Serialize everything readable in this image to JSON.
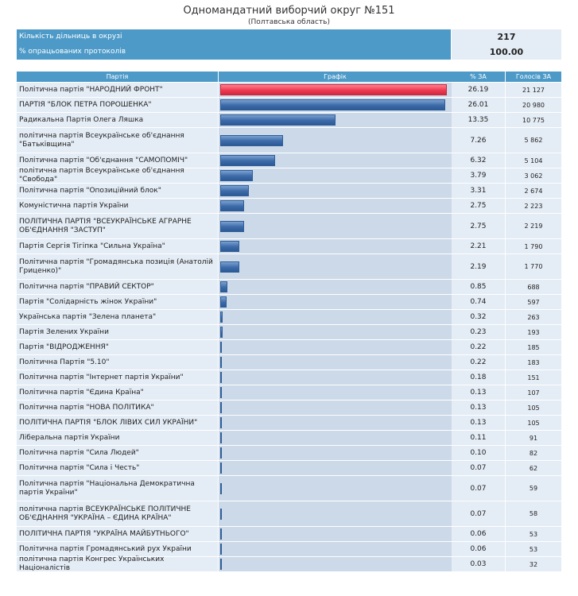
{
  "header": {
    "title": "Одномандатний виборчий округ №151",
    "subtitle": "(Полтавська область)"
  },
  "summary": {
    "stations_label": "Кількість дільниць в окрузі",
    "stations_value": "217",
    "processed_label": "% опрацьованих протоколів",
    "processed_value": "100.00"
  },
  "colors": {
    "bar": "#3c6aa8",
    "lead_bar": "#ee3a52",
    "header": "#4d9ac8"
  },
  "chart_data": {
    "type": "bar",
    "orientation": "horizontal",
    "headers": {
      "party": "Партія",
      "chart": "Графік",
      "pct": "% ЗА",
      "votes": "Голосів ЗА"
    },
    "rows": [
      {
        "party": "Політична партія \"НАРОДНИЙ ФРОНТ\"",
        "pct": "26.19",
        "votes": "21 127",
        "value": 26.19
      },
      {
        "party": "ПАРТІЯ \"БЛОК ПЕТРА ПОРОШЕНКА\"",
        "pct": "26.01",
        "votes": "20 980",
        "value": 26.01
      },
      {
        "party": "Радикальна Партія Олега Ляшка",
        "pct": "13.35",
        "votes": "10 775",
        "value": 13.35
      },
      {
        "party": "політична партія Всеукраїнське об'єднання \"Батьківщина\"",
        "pct": "7.26",
        "votes": "5 862",
        "value": 7.26
      },
      {
        "party": "Політична партія \"Об'єднання \"САМОПОМІЧ\"",
        "pct": "6.32",
        "votes": "5 104",
        "value": 6.32
      },
      {
        "party": "політична партія Всеукраїнське об'єднання \"Свобода\"",
        "pct": "3.79",
        "votes": "3 062",
        "value": 3.79
      },
      {
        "party": "Політична партія \"Опозиційний блок\"",
        "pct": "3.31",
        "votes": "2 674",
        "value": 3.31
      },
      {
        "party": "Комуністична партія України",
        "pct": "2.75",
        "votes": "2 223",
        "value": 2.75
      },
      {
        "party": "ПОЛІТИЧНА ПАРТІЯ \"ВСЕУКРАЇНСЬКЕ АГРАРНЕ ОБ'ЄДНАННЯ \"ЗАСТУП\"",
        "pct": "2.75",
        "votes": "2 219",
        "value": 2.75
      },
      {
        "party": "Партія Сергія Тігіпка \"Сильна Україна\"",
        "pct": "2.21",
        "votes": "1 790",
        "value": 2.21
      },
      {
        "party": "Політична партія \"Громадянська позиція (Анатолій Гриценко)\"",
        "pct": "2.19",
        "votes": "1 770",
        "value": 2.19
      },
      {
        "party": "Політична партія \"ПРАВИЙ СЕКТОР\"",
        "pct": "0.85",
        "votes": "688",
        "value": 0.85
      },
      {
        "party": "Партія \"Солідарність жінок України\"",
        "pct": "0.74",
        "votes": "597",
        "value": 0.74
      },
      {
        "party": "Українська партія \"Зелена планета\"",
        "pct": "0.32",
        "votes": "263",
        "value": 0.32
      },
      {
        "party": "Партія Зелених України",
        "pct": "0.23",
        "votes": "193",
        "value": 0.23
      },
      {
        "party": "Партія \"ВІДРОДЖЕННЯ\"",
        "pct": "0.22",
        "votes": "185",
        "value": 0.22
      },
      {
        "party": "Політична Партія \"5.10\"",
        "pct": "0.22",
        "votes": "183",
        "value": 0.22
      },
      {
        "party": "Політична партія \"Інтернет партія України\"",
        "pct": "0.18",
        "votes": "151",
        "value": 0.18
      },
      {
        "party": "Політична партія \"Єдина Країна\"",
        "pct": "0.13",
        "votes": "107",
        "value": 0.13
      },
      {
        "party": "Політична партія \"НОВА ПОЛІТИКА\"",
        "pct": "0.13",
        "votes": "105",
        "value": 0.13
      },
      {
        "party": "ПОЛІТИЧНА ПАРТІЯ \"БЛОК ЛІВИХ СИЛ УКРАЇНИ\"",
        "pct": "0.13",
        "votes": "105",
        "value": 0.13
      },
      {
        "party": "Ліберальна партія України",
        "pct": "0.11",
        "votes": "91",
        "value": 0.11
      },
      {
        "party": "Політична партія \"Сила Людей\"",
        "pct": "0.10",
        "votes": "82",
        "value": 0.1
      },
      {
        "party": "Політична партія \"Сила і Честь\"",
        "pct": "0.07",
        "votes": "62",
        "value": 0.07
      },
      {
        "party": "Політична партія \"Національна Демократична партія України\"",
        "pct": "0.07",
        "votes": "59",
        "value": 0.07
      },
      {
        "party": "політична партія ВСЕУКРАЇНСЬКЕ ПОЛІТИЧНЕ ОБ'ЄДНАННЯ \"УКРАЇНА – ЄДИНА КРАЇНА\"",
        "pct": "0.07",
        "votes": "58",
        "value": 0.07
      },
      {
        "party": "ПОЛІТИЧНА ПАРТІЯ \"УКРАЇНА МАЙБУТНЬОГО\"",
        "pct": "0.06",
        "votes": "53",
        "value": 0.06
      },
      {
        "party": "Політична партія Громадянський рух України",
        "pct": "0.06",
        "votes": "53",
        "value": 0.06
      },
      {
        "party": "політична партія Конгрес Українських Націоналістів",
        "pct": "0.03",
        "votes": "32",
        "value": 0.03
      }
    ]
  }
}
